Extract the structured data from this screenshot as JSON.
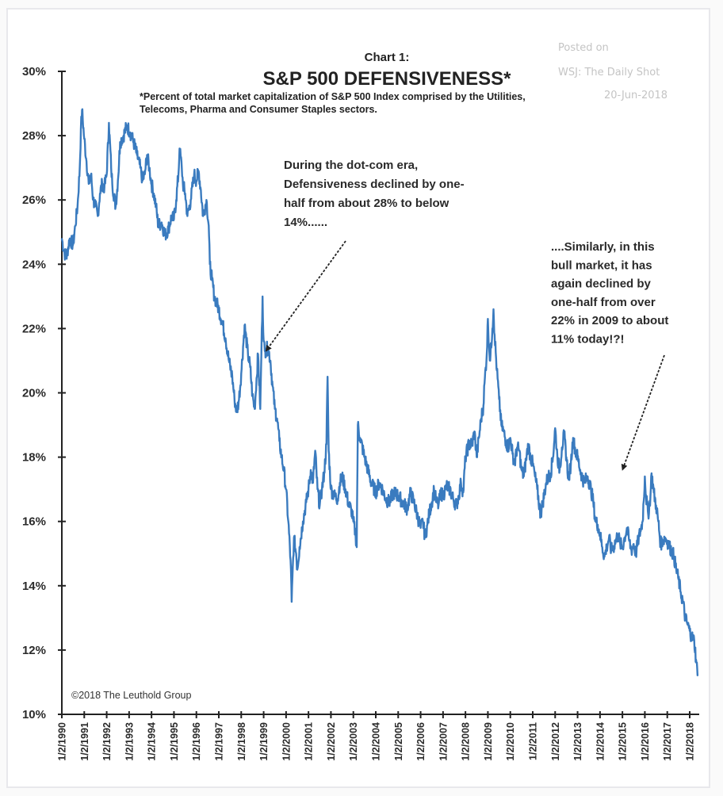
{
  "watermark": {
    "line1": "Posted on",
    "line2": "WSJ: The Daily Shot",
    "line3": "20-Jun-2018"
  },
  "chart_data": {
    "type": "line",
    "chart_label": "Chart 1:",
    "title": "S&P 500 DEFENSIVENESS*",
    "subtitle_line1": "*Percent of total market capitalization of S&P 500 Index comprised by the Utilities,",
    "subtitle_line2": "Telecoms, Pharma and Consumer Staples sectors.",
    "xlabel": "",
    "ylabel": "",
    "ylim": [
      10,
      30
    ],
    "xlim": [
      1990,
      2018.5
    ],
    "grid": false,
    "legend": "none",
    "line_color": "#3a7bbf",
    "yticks": [
      {
        "value": 10,
        "label": "10%"
      },
      {
        "value": 12,
        "label": "12%"
      },
      {
        "value": 14,
        "label": "14%"
      },
      {
        "value": 16,
        "label": "16%"
      },
      {
        "value": 18,
        "label": "18%"
      },
      {
        "value": 20,
        "label": "20%"
      },
      {
        "value": 22,
        "label": "22%"
      },
      {
        "value": 24,
        "label": "24%"
      },
      {
        "value": 26,
        "label": "26%"
      },
      {
        "value": 28,
        "label": "28%"
      },
      {
        "value": 30,
        "label": "30%"
      }
    ],
    "xticks": [
      {
        "value": 1990,
        "label": "1/2/1990"
      },
      {
        "value": 1991,
        "label": "1/2/1991"
      },
      {
        "value": 1992,
        "label": "1/2/1992"
      },
      {
        "value": 1993,
        "label": "1/2/1993"
      },
      {
        "value": 1994,
        "label": "1/2/1994"
      },
      {
        "value": 1995,
        "label": "1/2/1995"
      },
      {
        "value": 1996,
        "label": "1/2/1996"
      },
      {
        "value": 1997,
        "label": "1/2/1997"
      },
      {
        "value": 1998,
        "label": "1/2/1998"
      },
      {
        "value": 1999,
        "label": "1/2/1999"
      },
      {
        "value": 2000,
        "label": "1/2/2000"
      },
      {
        "value": 2001,
        "label": "1/2/2001"
      },
      {
        "value": 2002,
        "label": "1/2/2002"
      },
      {
        "value": 2003,
        "label": "1/2/2003"
      },
      {
        "value": 2004,
        "label": "1/2/2004"
      },
      {
        "value": 2005,
        "label": "1/2/2005"
      },
      {
        "value": 2006,
        "label": "1/2/2006"
      },
      {
        "value": 2007,
        "label": "1/2/2007"
      },
      {
        "value": 2008,
        "label": "1/2/2008"
      },
      {
        "value": 2009,
        "label": "1/2/2009"
      },
      {
        "value": 2010,
        "label": "1/2/2010"
      },
      {
        "value": 2011,
        "label": "1/2/2011"
      },
      {
        "value": 2012,
        "label": "1/2/2012"
      },
      {
        "value": 2013,
        "label": "1/2/2013"
      },
      {
        "value": 2014,
        "label": "1/2/2014"
      },
      {
        "value": 2015,
        "label": "1/2/2015"
      },
      {
        "value": 2016,
        "label": "1/2/2016"
      },
      {
        "value": 2017,
        "label": "1/2/2017"
      },
      {
        "value": 2018,
        "label": "1/2/2018"
      }
    ],
    "series": [
      {
        "name": "S&P 500 Defensiveness (%)",
        "x": [
          1990.0,
          1990.1,
          1990.2,
          1990.35,
          1990.5,
          1990.6,
          1990.7,
          1990.8,
          1990.85,
          1990.9,
          1991.0,
          1991.1,
          1991.2,
          1991.3,
          1991.4,
          1991.5,
          1991.6,
          1991.7,
          1991.8,
          1991.9,
          1992.0,
          1992.1,
          1992.2,
          1992.25,
          1992.4,
          1992.5,
          1992.6,
          1992.75,
          1992.9,
          1993.05,
          1993.2,
          1993.35,
          1993.5,
          1993.6,
          1993.7,
          1993.8,
          1993.9,
          1994.0,
          1994.1,
          1994.2,
          1994.3,
          1994.45,
          1994.6,
          1994.75,
          1994.9,
          1995.0,
          1995.1,
          1995.2,
          1995.25,
          1995.35,
          1995.4,
          1995.5,
          1995.6,
          1995.75,
          1995.9,
          1996.0,
          1996.1,
          1996.2,
          1996.3,
          1996.45,
          1996.55,
          1996.6,
          1996.7,
          1996.8,
          1996.9,
          1997.0,
          1997.15,
          1997.3,
          1997.45,
          1997.6,
          1997.7,
          1997.8,
          1997.9,
          1998.0,
          1998.15,
          1998.3,
          1998.4,
          1998.5,
          1998.6,
          1998.75,
          1998.85,
          1998.95,
          1999.0,
          1999.05,
          1999.2,
          1999.3,
          1999.4,
          1999.5,
          1999.6,
          1999.7,
          1999.8,
          1999.9,
          2000.0,
          2000.1,
          2000.2,
          2000.25,
          2000.35,
          2000.45,
          2000.5,
          2000.6,
          2000.75,
          2000.9,
          2001.0,
          2001.1,
          2001.2,
          2001.3,
          2001.4,
          2001.5,
          2001.6,
          2001.7,
          2001.8,
          2001.85,
          2001.9,
          2002.0,
          2002.15,
          2002.3,
          2002.4,
          2002.5,
          2002.65,
          2002.8,
          2002.9,
          2003.0,
          2003.1,
          2003.15,
          2003.2,
          2003.3,
          2003.5,
          2003.65,
          2003.8,
          2004.0,
          2004.15,
          2004.3,
          2004.45,
          2004.6,
          2004.8,
          2005.0,
          2005.2,
          2005.4,
          2005.55,
          2005.7,
          2005.85,
          2006.0,
          2006.1,
          2006.2,
          2006.3,
          2006.4,
          2006.5,
          2006.6,
          2006.7,
          2006.8,
          2006.9,
          2007.0,
          2007.15,
          2007.3,
          2007.45,
          2007.6,
          2007.7,
          2007.8,
          2007.9,
          2008.0,
          2008.15,
          2008.3,
          2008.4,
          2008.5,
          2008.6,
          2008.7,
          2008.8,
          2008.85,
          2008.95,
          2009.0,
          2009.05,
          2009.1,
          2009.2,
          2009.25,
          2009.3,
          2009.4,
          2009.5,
          2009.6,
          2009.7,
          2009.8,
          2009.9,
          2010.0,
          2010.1,
          2010.2,
          2010.3,
          2010.4,
          2010.5,
          2010.6,
          2010.7,
          2010.8,
          2010.9,
          2011.0,
          2011.1,
          2011.2,
          2011.35,
          2011.45,
          2011.6,
          2011.7,
          2011.8,
          2011.9,
          2012.0,
          2012.1,
          2012.2,
          2012.3,
          2012.4,
          2012.5,
          2012.6,
          2012.7,
          2012.8,
          2012.9,
          2013.0,
          2013.15,
          2013.3,
          2013.45,
          2013.6,
          2013.7,
          2013.8,
          2013.9,
          2014.0,
          2014.1,
          2014.2,
          2014.3,
          2014.4,
          2014.5,
          2014.6,
          2014.7,
          2014.8,
          2014.9,
          2015.0,
          2015.1,
          2015.2,
          2015.3,
          2015.4,
          2015.5,
          2015.6,
          2015.7,
          2015.8,
          2015.9,
          2016.0,
          2016.05,
          2016.15,
          2016.25,
          2016.3,
          2016.4,
          2016.5,
          2016.6,
          2016.7,
          2016.8,
          2016.9,
          2017.0,
          2017.1,
          2017.2,
          2017.3,
          2017.4,
          2017.5,
          2017.6,
          2017.7,
          2017.8,
          2017.9,
          2018.0,
          2018.1,
          2018.2,
          2018.3,
          2018.35
        ],
        "values": [
          24.8,
          24.4,
          24.2,
          24.8,
          24.6,
          25.2,
          25.8,
          27.0,
          28.2,
          28.8,
          27.9,
          27.2,
          26.5,
          26.8,
          26.0,
          25.8,
          25.5,
          26.2,
          26.5,
          26.4,
          26.8,
          28.4,
          27.0,
          26.5,
          25.8,
          26.6,
          27.8,
          28.0,
          28.3,
          28.1,
          27.8,
          27.4,
          27.0,
          26.6,
          26.8,
          27.4,
          27.0,
          26.5,
          26.2,
          25.8,
          25.2,
          25.3,
          24.9,
          25.1,
          25.5,
          25.4,
          26.0,
          26.8,
          27.6,
          27.0,
          26.5,
          26.2,
          25.5,
          26.0,
          26.8,
          26.6,
          26.9,
          26.3,
          25.5,
          26.0,
          25.2,
          24.0,
          23.5,
          23.0,
          22.8,
          22.6,
          22.2,
          21.7,
          21.0,
          20.5,
          19.8,
          19.4,
          19.8,
          20.6,
          22.1,
          21.2,
          20.8,
          19.9,
          19.5,
          21.2,
          19.5,
          23.0,
          21.6,
          21.3,
          21.4,
          21.0,
          20.2,
          19.5,
          19.2,
          18.5,
          18.0,
          17.6,
          17.0,
          16.0,
          14.8,
          13.5,
          15.5,
          15.0,
          14.5,
          15.2,
          16.0,
          16.6,
          17.0,
          17.6,
          17.2,
          18.2,
          17.0,
          16.5,
          17.0,
          17.5,
          18.4,
          20.5,
          18.2,
          17.0,
          16.8,
          16.7,
          17.2,
          17.4,
          17.0,
          16.5,
          16.4,
          16.0,
          15.6,
          15.2,
          19.0,
          18.6,
          18.0,
          17.6,
          17.2,
          16.9,
          17.2,
          17.0,
          16.7,
          16.6,
          16.9,
          16.8,
          16.6,
          16.4,
          16.9,
          16.6,
          16.2,
          15.8,
          16.0,
          15.5,
          15.9,
          16.3,
          16.6,
          17.0,
          16.6,
          16.5,
          16.9,
          16.8,
          17.1,
          17.0,
          16.7,
          16.5,
          16.8,
          17.2,
          16.9,
          18.0,
          18.4,
          18.4,
          18.8,
          18.0,
          18.6,
          19.2,
          19.6,
          20.3,
          21.2,
          22.3,
          21.5,
          21.0,
          22.0,
          22.6,
          21.8,
          20.7,
          19.8,
          19.0,
          18.8,
          18.5,
          18.3,
          18.6,
          18.1,
          17.8,
          18.3,
          18.2,
          17.6,
          17.4,
          17.9,
          18.4,
          18.0,
          17.8,
          17.4,
          17.0,
          16.2,
          16.6,
          17.2,
          17.4,
          17.5,
          18.0,
          18.9,
          18.0,
          17.6,
          18.3,
          18.7,
          18.0,
          17.3,
          17.8,
          18.6,
          18.2,
          18.0,
          17.5,
          17.2,
          17.4,
          17.0,
          16.6,
          16.0,
          15.9,
          15.6,
          15.2,
          14.9,
          15.2,
          15.5,
          15.1,
          15.2,
          15.4,
          15.6,
          15.3,
          15.2,
          15.5,
          15.8,
          15.4,
          15.1,
          15.3,
          15.0,
          15.4,
          15.7,
          16.0,
          17.4,
          16.8,
          16.2,
          16.8,
          17.5,
          16.9,
          16.5,
          16.0,
          15.3,
          15.4,
          15.5,
          15.4,
          15.2,
          15.1,
          14.9,
          14.5,
          14.2,
          13.8,
          13.5,
          13.0,
          12.8,
          12.6,
          12.4,
          12.3,
          11.6,
          11.2
        ]
      }
    ],
    "annotations": [
      {
        "id": "dotcom",
        "lines": [
          "During the dot-com era,",
          "Defensiveness declined by one-",
          "half from about 28% to below",
          "14%......"
        ],
        "arrow_to": {
          "x": 1999.1,
          "y": 21.3
        }
      },
      {
        "id": "bull",
        "lines": [
          "....Similarly, in this",
          "bull market, it has",
          "again declined by",
          "one-half from over",
          "22% in 2009 to about",
          "11% today!?!"
        ],
        "arrow_to": {
          "x": 2015.0,
          "y": 17.6
        }
      }
    ],
    "source": "©2018 The Leuthold Group"
  }
}
